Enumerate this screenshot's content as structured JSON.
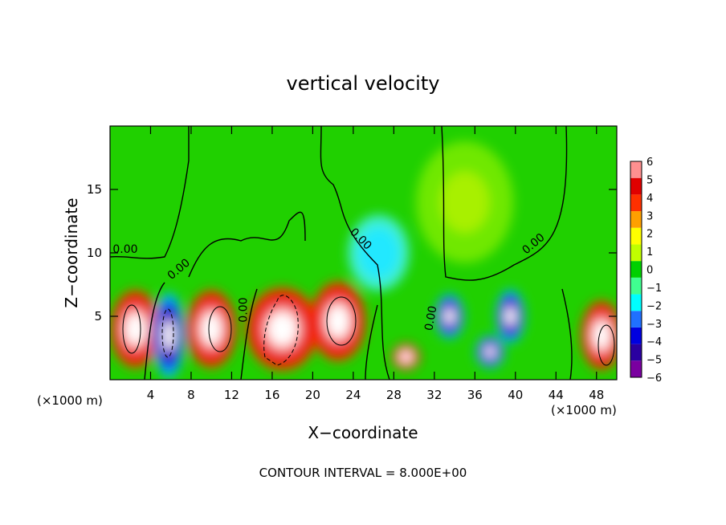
{
  "chart_data": {
    "type": "heatmap",
    "title": "vertical velocity",
    "xlabel": "X−coordinate",
    "ylabel": "Z−coordinate",
    "x_unit_left": "(×1000 m)",
    "x_unit_right": "(×1000 m)",
    "footer": "CONTOUR INTERVAL = 8.000E+00",
    "xlim": [
      0,
      50
    ],
    "ylim": [
      0,
      20
    ],
    "x_ticks": [
      4,
      8,
      12,
      16,
      20,
      24,
      28,
      32,
      36,
      40,
      44,
      48
    ],
    "y_ticks": [
      5,
      10,
      15
    ],
    "colorbar": {
      "ticks": [
        "6",
        "5",
        "4",
        "3",
        "2",
        "1",
        "0",
        "−1",
        "−2",
        "−3",
        "−4",
        "−5",
        "−6"
      ],
      "range": [
        -6,
        6
      ],
      "colors": [
        "#7a00a0",
        "#2a00a0",
        "#0000e0",
        "#2070ff",
        "#00ffff",
        "#40ff90",
        "#00d000",
        "#c0ff00",
        "#ffff00",
        "#ffa000",
        "#ff3000",
        "#e00000",
        "#ff9090"
      ]
    },
    "contour_labels": [
      {
        "text": "0.00",
        "x": 1.5,
        "z": 10.0,
        "rotate": 0
      },
      {
        "text": "0.00",
        "x": 7.0,
        "z": 8.5,
        "rotate": -40
      },
      {
        "text": "0.00",
        "x": 13.5,
        "z": 5.5,
        "rotate": -90
      },
      {
        "text": "0.00",
        "x": 24.5,
        "z": 10.9,
        "rotate": 45
      },
      {
        "text": "0.00",
        "x": 32.0,
        "z": 4.8,
        "rotate": -80
      },
      {
        "text": "0.00",
        "x": 42.0,
        "z": 10.5,
        "rotate": -40
      }
    ],
    "features": [
      {
        "x": 2.5,
        "z": 4.0,
        "w": 3.6,
        "h": 4.5,
        "value": 6
      },
      {
        "x": 5.8,
        "z": 3.5,
        "w": 2.2,
        "h": 4.8,
        "value": -6
      },
      {
        "x": 10.0,
        "z": 4.0,
        "w": 3.6,
        "h": 4.5,
        "value": 6
      },
      {
        "x": 17.0,
        "z": 4.0,
        "w": 5.2,
        "h": 4.8,
        "value": 6
      },
      {
        "x": 22.5,
        "z": 4.6,
        "w": 4.0,
        "h": 4.6,
        "value": 6
      },
      {
        "x": 29.2,
        "z": 1.8,
        "w": 2.0,
        "h": 1.5,
        "value": 6
      },
      {
        "x": 33.5,
        "z": 5.0,
        "w": 2.0,
        "h": 2.5,
        "value": -6
      },
      {
        "x": 37.5,
        "z": 2.2,
        "w": 2.0,
        "h": 1.8,
        "value": -6
      },
      {
        "x": 39.5,
        "z": 5.0,
        "w": 2.0,
        "h": 3.0,
        "value": -6
      },
      {
        "x": 48.5,
        "z": 3.5,
        "w": 3.0,
        "h": 4.0,
        "value": 6
      },
      {
        "x": 26.5,
        "z": 10.0,
        "w": 5.0,
        "h": 5.0,
        "value": -2
      },
      {
        "x": 35.0,
        "z": 14.0,
        "w": 8.0,
        "h": 8.0,
        "value": 1
      }
    ]
  }
}
